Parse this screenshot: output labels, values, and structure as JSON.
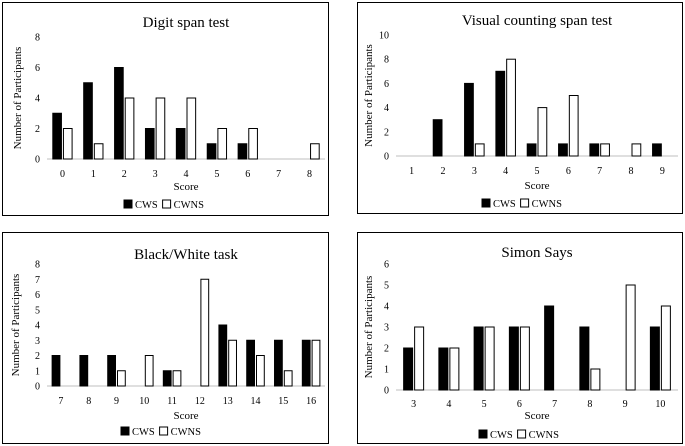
{
  "chart_data": [
    {
      "type": "bar",
      "title": "Digit span test",
      "xlabel": "Score",
      "ylabel": "Number of Participants",
      "ylim": [
        0,
        8
      ],
      "ytick_step": 2,
      "categories": [
        "0",
        "1",
        "2",
        "3",
        "4",
        "5",
        "6",
        "7",
        "8"
      ],
      "series": [
        {
          "name": "CWS",
          "fill": "#000000",
          "values": [
            3,
            5,
            6,
            2,
            2,
            1,
            1,
            0,
            0
          ]
        },
        {
          "name": "CWNS",
          "fill": "#ffffff",
          "values": [
            2,
            1,
            4,
            4,
            4,
            2,
            2,
            0,
            1
          ]
        }
      ],
      "legend": "bottom"
    },
    {
      "type": "bar",
      "title": "Visual counting span test",
      "xlabel": "Score",
      "ylabel": "Number of Participants",
      "ylim": [
        0,
        10
      ],
      "ytick_step": 2,
      "categories": [
        "1",
        "2",
        "3",
        "4",
        "5",
        "6",
        "7",
        "8",
        "9"
      ],
      "series": [
        {
          "name": "CWS",
          "fill": "#000000",
          "values": [
            0,
            3,
            6,
            7,
            1,
            1,
            1,
            0,
            1
          ]
        },
        {
          "name": "CWNS",
          "fill": "#ffffff",
          "values": [
            0,
            0,
            1,
            8,
            4,
            5,
            1,
            1,
            0
          ]
        }
      ],
      "legend": "bottom"
    },
    {
      "type": "bar",
      "title": "Black/White task",
      "xlabel": "Score",
      "ylabel": "Number of Participants",
      "ylim": [
        0,
        8
      ],
      "ytick_step": 1,
      "categories": [
        "7",
        "8",
        "9",
        "10",
        "11",
        "12",
        "13",
        "14",
        "15",
        "16"
      ],
      "series": [
        {
          "name": "CWS",
          "fill": "#000000",
          "values": [
            2,
            2,
            2,
            0,
            1,
            0,
            4,
            3,
            3,
            3
          ]
        },
        {
          "name": "CWNS",
          "fill": "#ffffff",
          "values": [
            0,
            0,
            1,
            2,
            1,
            7,
            3,
            2,
            1,
            3
          ]
        }
      ],
      "legend": "bottom"
    },
    {
      "type": "bar",
      "title": "Simon Says",
      "xlabel": "Score",
      "ylabel": "Number of Participants",
      "ylim": [
        0,
        6
      ],
      "ytick_step": 1,
      "categories": [
        "3",
        "4",
        "5",
        "6",
        "7",
        "8",
        "9",
        "10"
      ],
      "series": [
        {
          "name": "CWS",
          "fill": "#000000",
          "values": [
            2,
            2,
            3,
            3,
            4,
            3,
            0,
            3
          ]
        },
        {
          "name": "CWNS",
          "fill": "#ffffff",
          "values": [
            3,
            2,
            3,
            3,
            0,
            1,
            5,
            4
          ]
        }
      ],
      "legend": "bottom"
    }
  ]
}
